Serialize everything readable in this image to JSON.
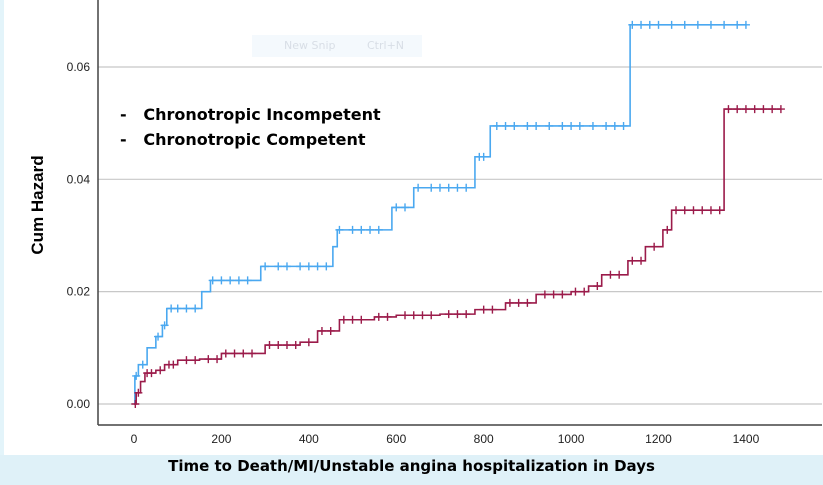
{
  "chart_data": {
    "type": "line",
    "title": "",
    "xlabel": "Time to Death/MI/Unstable angina hospitalization in Days",
    "ylabel": "Cum Hazard",
    "xlim": [
      -80,
      1580
    ],
    "ylim": [
      -0.0037,
      0.072
    ],
    "xticks": [
      "0",
      "200",
      "400",
      "600",
      "800",
      "1000",
      "1200",
      "1400"
    ],
    "xtick_values": [
      0,
      200,
      400,
      600,
      800,
      1000,
      1200,
      1400
    ],
    "yticks": [
      "0.00",
      "0.02",
      "0.04",
      "0.06"
    ],
    "ytick_values": [
      0,
      0.02,
      0.04,
      0.06
    ],
    "grid": "horizontal",
    "legend_placement": "top-left",
    "series": [
      {
        "name": "Chronotropic Incompetent",
        "legend_marker": "-",
        "color": "#4aa8f0",
        "steps": [
          [
            0,
            0
          ],
          [
            2,
            0.005
          ],
          [
            10,
            0.007
          ],
          [
            30,
            0.01
          ],
          [
            50,
            0.012
          ],
          [
            65,
            0.014
          ],
          [
            75,
            0.017
          ],
          [
            155,
            0.02
          ],
          [
            175,
            0.022
          ],
          [
            290,
            0.0245
          ],
          [
            455,
            0.028
          ],
          [
            465,
            0.031
          ],
          [
            590,
            0.035
          ],
          [
            640,
            0.0385
          ],
          [
            780,
            0.044
          ],
          [
            815,
            0.0495
          ],
          [
            1135,
            0.0675
          ],
          [
            1400,
            0.0675
          ]
        ],
        "censored": [
          5,
          20,
          55,
          70,
          85,
          100,
          120,
          140,
          180,
          200,
          220,
          240,
          260,
          300,
          330,
          350,
          380,
          400,
          420,
          440,
          470,
          500,
          520,
          540,
          560,
          600,
          620,
          650,
          680,
          700,
          720,
          740,
          760,
          790,
          800,
          830,
          850,
          870,
          900,
          920,
          950,
          980,
          1000,
          1020,
          1050,
          1080,
          1100,
          1120,
          1140,
          1160,
          1180,
          1200,
          1230,
          1260,
          1290,
          1320,
          1350,
          1380,
          1400
        ]
      },
      {
        "name": "Chronotropic Competent",
        "legend_marker": "-",
        "color": "#9b1b4a",
        "steps": [
          [
            0,
            0
          ],
          [
            5,
            0.002
          ],
          [
            15,
            0.004
          ],
          [
            25,
            0.0055
          ],
          [
            50,
            0.006
          ],
          [
            70,
            0.007
          ],
          [
            100,
            0.0078
          ],
          [
            150,
            0.008
          ],
          [
            200,
            0.009
          ],
          [
            300,
            0.0105
          ],
          [
            380,
            0.011
          ],
          [
            420,
            0.013
          ],
          [
            470,
            0.015
          ],
          [
            550,
            0.0155
          ],
          [
            600,
            0.0158
          ],
          [
            700,
            0.016
          ],
          [
            780,
            0.0168
          ],
          [
            850,
            0.018
          ],
          [
            920,
            0.0195
          ],
          [
            1000,
            0.02
          ],
          [
            1040,
            0.021
          ],
          [
            1070,
            0.023
          ],
          [
            1130,
            0.0255
          ],
          [
            1170,
            0.028
          ],
          [
            1210,
            0.031
          ],
          [
            1230,
            0.0345
          ],
          [
            1350,
            0.0525
          ],
          [
            1480,
            0.0525
          ]
        ],
        "censored": [
          3,
          10,
          30,
          40,
          60,
          80,
          90,
          120,
          140,
          170,
          190,
          210,
          230,
          250,
          270,
          310,
          330,
          350,
          370,
          400,
          430,
          450,
          480,
          500,
          520,
          560,
          580,
          620,
          640,
          660,
          680,
          720,
          740,
          760,
          800,
          820,
          860,
          880,
          900,
          940,
          960,
          980,
          1010,
          1030,
          1060,
          1090,
          1110,
          1140,
          1160,
          1190,
          1220,
          1240,
          1260,
          1280,
          1300,
          1320,
          1340,
          1360,
          1380,
          1400,
          1420,
          1440,
          1460,
          1480
        ]
      }
    ]
  },
  "overlay": {
    "snip_label": "New Snip",
    "snip_shortcut": "Ctrl+N"
  }
}
